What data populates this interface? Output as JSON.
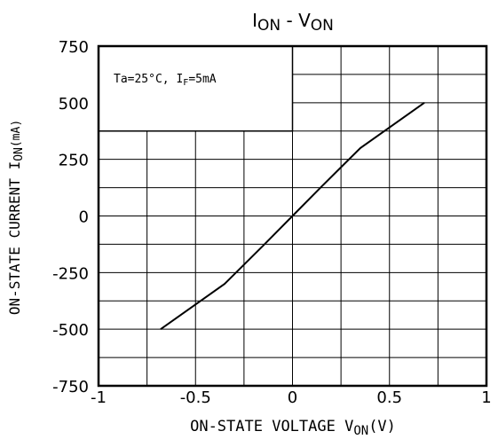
{
  "chart_data": {
    "type": "line",
    "title_main": "I",
    "title_sub1": "ON",
    "title_mid": " - V",
    "title_sub2": "ON",
    "xlabel_main": "ON-STATE VOLTAGE  V",
    "xlabel_sub": "ON",
    "xlabel_unit": "(V)",
    "ylabel_main": "ON-STATE CURRENT I",
    "ylabel_sub": "ON",
    "ylabel_unit": "(mA)",
    "annotation_main": "Ta=25°C, I",
    "annotation_sub": "F",
    "annotation_tail": "=5mA",
    "xlim": [
      -1,
      1
    ],
    "ylim": [
      -750,
      750
    ],
    "x_ticks": [
      "-1",
      "-0.5",
      "0",
      "0.5",
      "1"
    ],
    "y_ticks": [
      "750",
      "500",
      "250",
      "0",
      "-250",
      "-500",
      "-750"
    ],
    "grid": true,
    "x_minor_step": 0.25,
    "y_minor_step": 125,
    "series": [
      {
        "x": [
          -0.68,
          -0.35,
          -0.15,
          0,
          0.15,
          0.35,
          0.68
        ],
        "y": [
          -500,
          -300,
          -130,
          0,
          130,
          300,
          500
        ]
      }
    ]
  }
}
